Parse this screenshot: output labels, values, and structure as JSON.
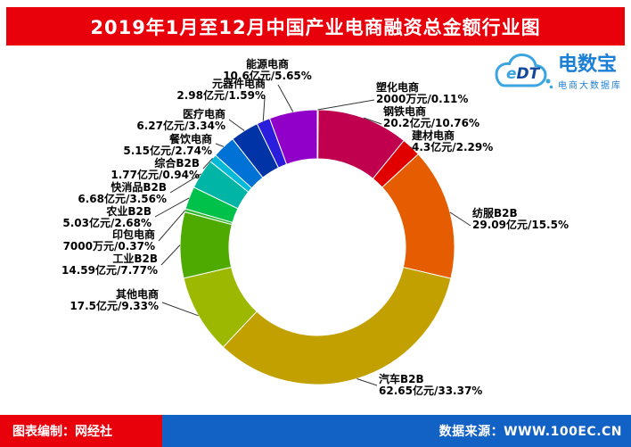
{
  "page": {
    "title": "2019年1月至12月中国产业电商融资总金额行业图"
  },
  "logo": {
    "badge_text": "eDT",
    "name": "电数宝",
    "subtitle": "电商大数据库"
  },
  "footer": {
    "left": "图表编制：网经社",
    "right": "数据来源：WWW.100EC.CN"
  },
  "colors": {
    "header_bg": "#e8000b",
    "footer_left_bg": "#e8000b",
    "footer_right_bg": "#1261c4",
    "logo_blue": "#1c7fd6",
    "leader_line": "#333333"
  },
  "chart_data": {
    "type": "pie",
    "donut": true,
    "title": "2019年1月至12月中国产业电商融资总金额行业图",
    "unit": "亿元",
    "start_angle_deg": 0,
    "clockwise": true,
    "legend_position": "none",
    "slices": [
      {
        "id": "plastics-ecommerce",
        "name": "塑化电商",
        "amount": "2000万元",
        "amount_yi": 0.2,
        "percent": 0.11,
        "value_label": "2000万元/0.11%",
        "color": "#d40073"
      },
      {
        "id": "steel-ecommerce",
        "name": "钢铁电商",
        "amount": "20.2亿元",
        "amount_yi": 20.2,
        "percent": 10.76,
        "value_label": "20.2亿元/10.76%",
        "color": "#c0004e"
      },
      {
        "id": "building-materials-ecommerce",
        "name": "建材电商",
        "amount": "4.3亿元",
        "amount_yi": 4.3,
        "percent": 2.29,
        "value_label": "4.3亿元/2.29%",
        "color": "#e00000"
      },
      {
        "id": "textile-b2b",
        "name": "纺服B2B",
        "amount": "29.09亿元",
        "amount_yi": 29.09,
        "percent": 15.5,
        "value_label": "29.09亿元/15.5%",
        "color": "#e65c00"
      },
      {
        "id": "auto-b2b",
        "name": "汽车B2B",
        "amount": "62.65亿元",
        "amount_yi": 62.65,
        "percent": 33.37,
        "value_label": "62.65亿元/33.37%",
        "color": "#c2a000"
      },
      {
        "id": "other-ecommerce",
        "name": "其他电商",
        "amount": "17.5亿元",
        "amount_yi": 17.5,
        "percent": 9.33,
        "value_label": "17.5亿元/9.33%",
        "color": "#9cb800"
      },
      {
        "id": "industrial-b2b",
        "name": "工业B2B",
        "amount": "14.59亿元",
        "amount_yi": 14.59,
        "percent": 7.77,
        "value_label": "14.59亿元/7.77%",
        "color": "#4faa00"
      },
      {
        "id": "printing-packaging-ecommerce",
        "name": "印包电商",
        "amount": "7000万元",
        "amount_yi": 0.7,
        "percent": 0.37,
        "value_label": "7000万元/0.37%",
        "color": "#2db92d"
      },
      {
        "id": "agriculture-b2b",
        "name": "农业B2B",
        "amount": "5.03亿元",
        "amount_yi": 5.03,
        "percent": 2.68,
        "value_label": "5.03亿元/2.68%",
        "color": "#00c24b"
      },
      {
        "id": "fmcg-b2b",
        "name": "快消品B2B",
        "amount": "6.68亿元",
        "amount_yi": 6.68,
        "percent": 3.56,
        "value_label": "6.68亿元/3.56%",
        "color": "#00b4a6"
      },
      {
        "id": "comprehensive-b2b",
        "name": "综合B2B",
        "amount": "1.77亿元",
        "amount_yi": 1.77,
        "percent": 0.94,
        "value_label": "1.77亿元/0.94%",
        "color": "#00b9d9"
      },
      {
        "id": "catering-ecommerce",
        "name": "餐饮电商",
        "amount": "5.15亿元",
        "amount_yi": 5.15,
        "percent": 2.74,
        "value_label": "5.15亿元/2.74%",
        "color": "#0072d6"
      },
      {
        "id": "medical-ecommerce",
        "name": "医疗电商",
        "amount": "6.27亿元",
        "amount_yi": 6.27,
        "percent": 3.34,
        "value_label": "6.27亿元/3.34%",
        "color": "#0033a6"
      },
      {
        "id": "components-ecommerce",
        "name": "元器件电商",
        "amount": "2.98亿元",
        "amount_yi": 2.98,
        "percent": 1.59,
        "value_label": "2.98亿元/1.59%",
        "color": "#2a1ddb"
      },
      {
        "id": "energy-ecommerce",
        "name": "能源电商",
        "amount": "10.6亿元",
        "amount_yi": 10.6,
        "percent": 5.65,
        "value_label": "10.6亿元/5.65%",
        "color": "#9000c8"
      }
    ]
  }
}
